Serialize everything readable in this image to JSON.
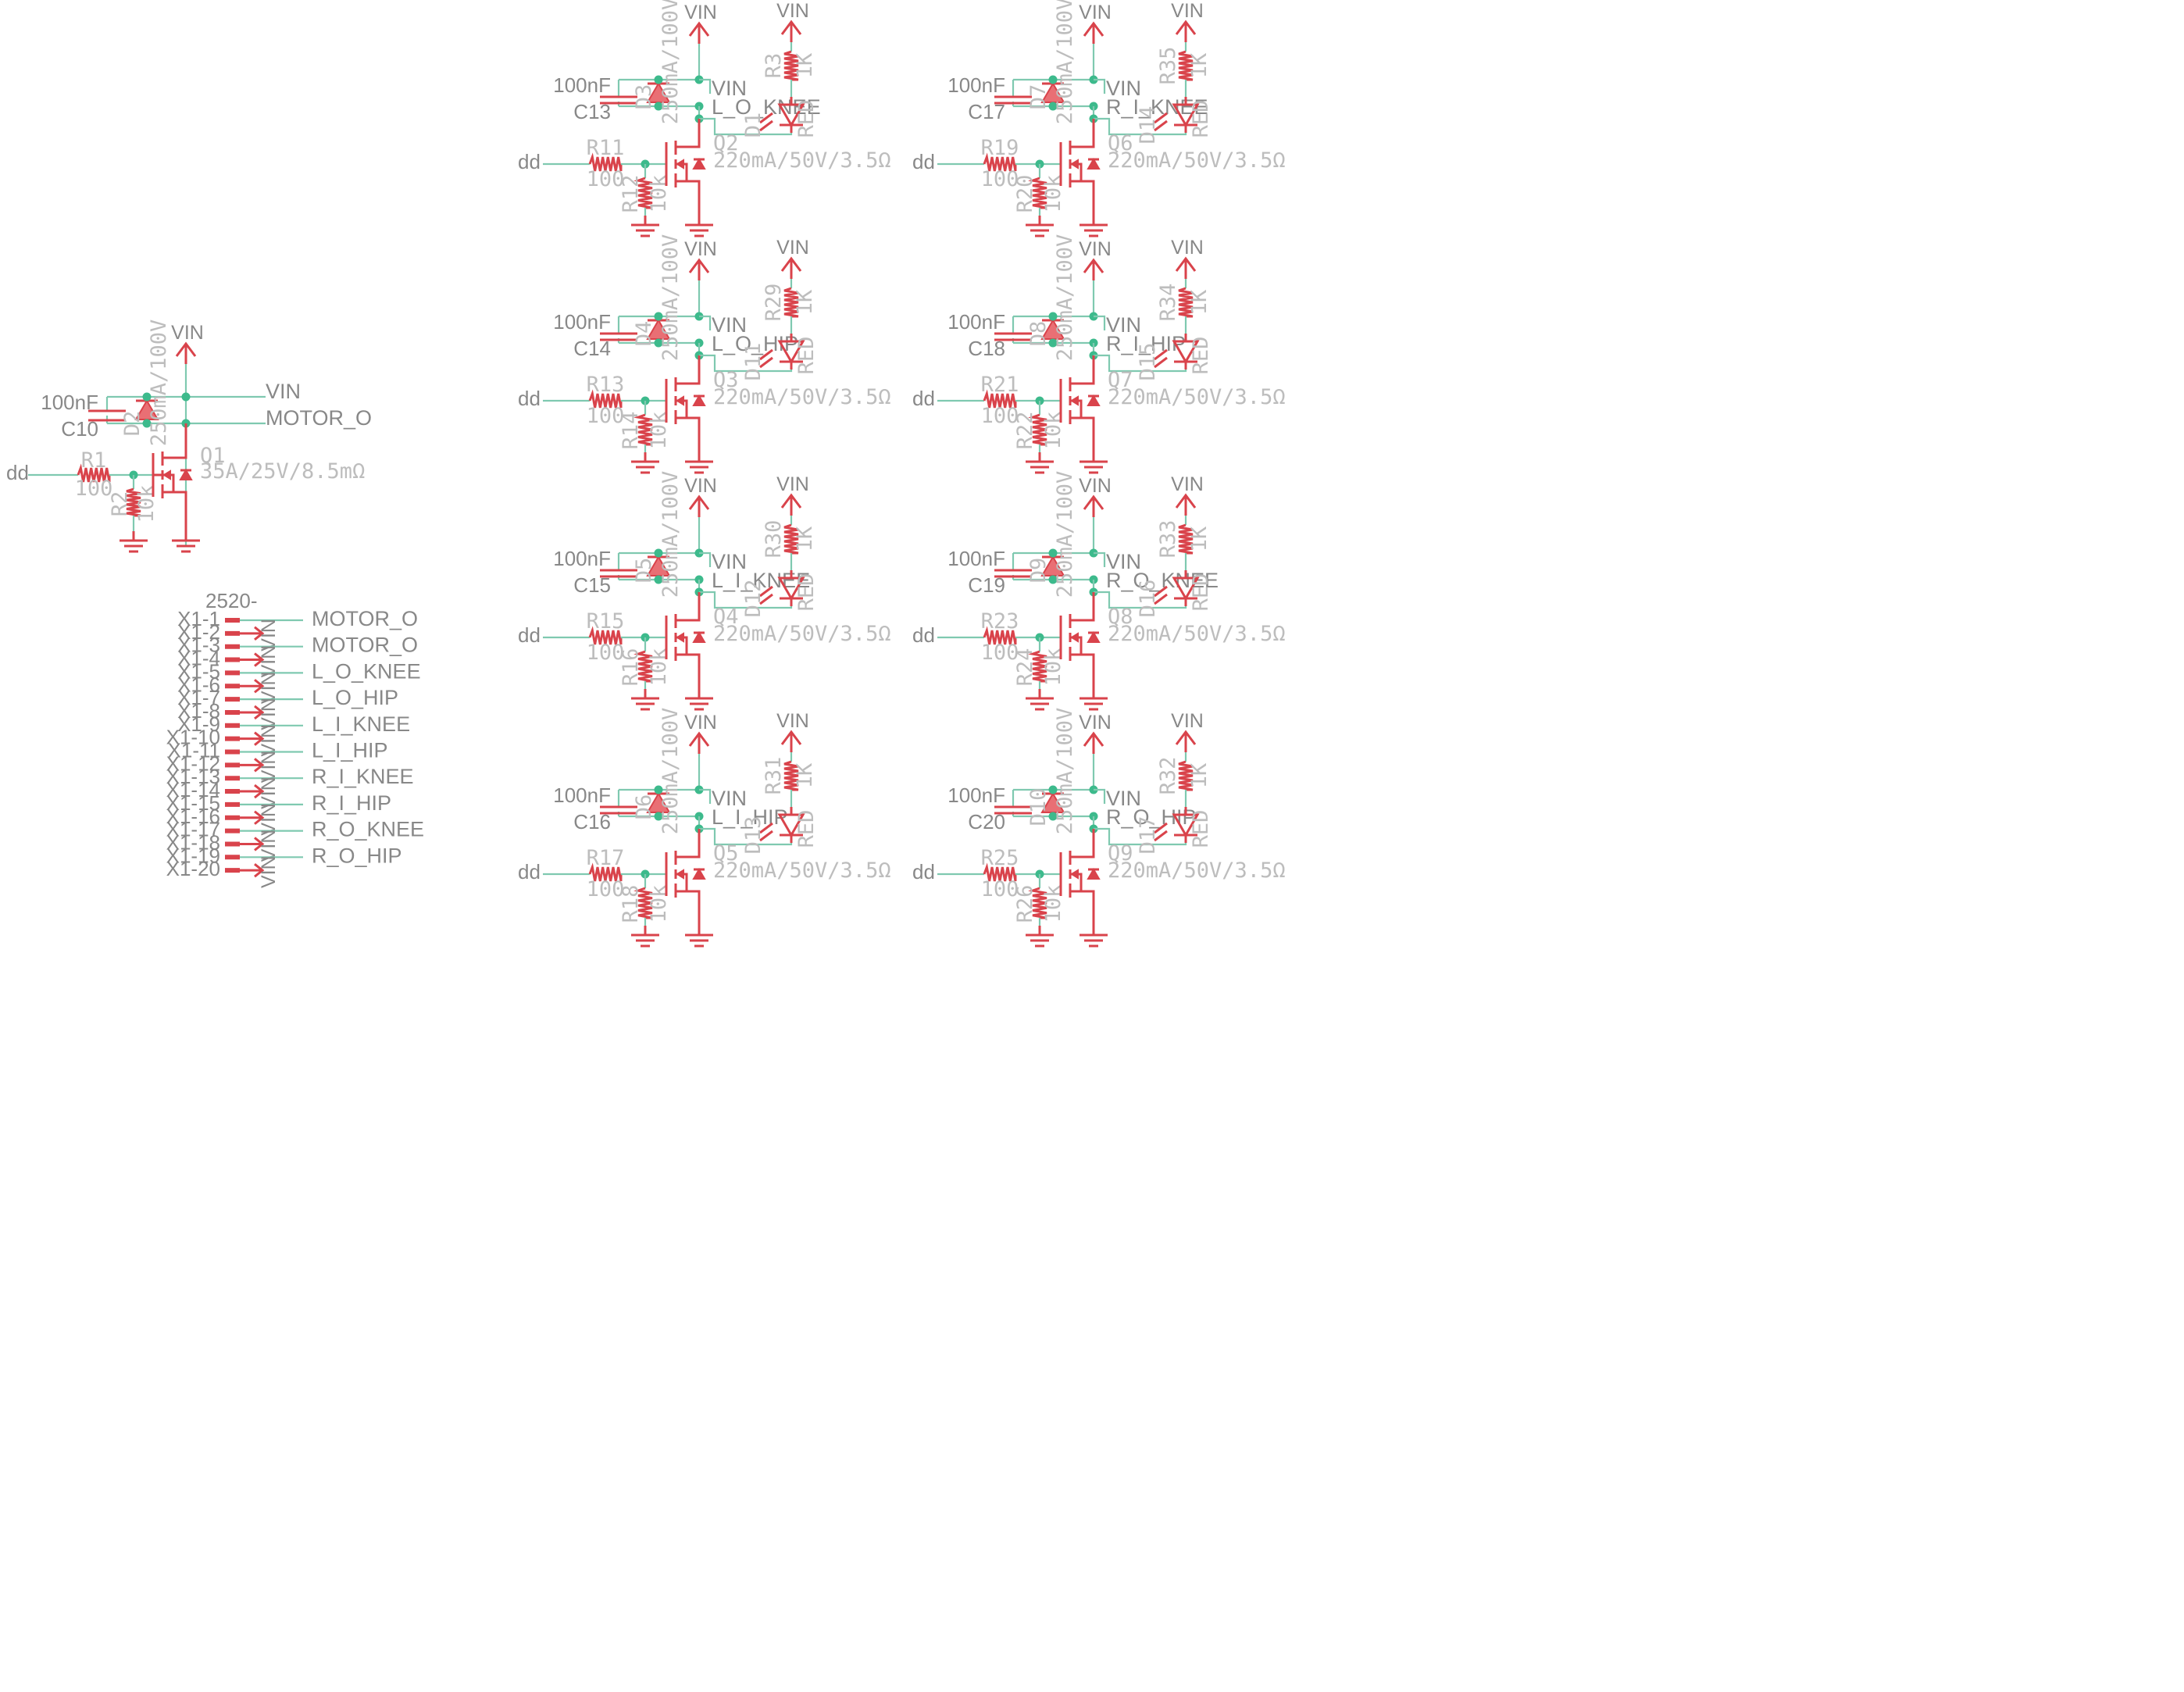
{
  "power": {
    "vin": "VIN"
  },
  "driver": {
    "input": "dd",
    "resistor": {
      "ref": "R1",
      "value": "100"
    },
    "pulldown": {
      "ref": "R2",
      "value": "10k"
    },
    "diode": {
      "ref": "D2",
      "value": "250mA/100V"
    },
    "cap": {
      "ref": "C10",
      "value": "100nF"
    },
    "mosfet": {
      "ref": "Q1",
      "value": "35A/25V/8.5mΩ"
    },
    "net_vin": "VIN",
    "net_out": "MOTOR_O"
  },
  "channels": [
    {
      "cap": "C13",
      "diode": "D3",
      "resistor": "R11",
      "pulldown": "R12",
      "mosfet": "Q2",
      "led_res": "R3",
      "led": "D1",
      "net": "L_O_KNEE"
    },
    {
      "cap": "C17",
      "diode": "D7",
      "resistor": "R19",
      "pulldown": "R20",
      "mosfet": "Q6",
      "led_res": "R35",
      "led": "D14",
      "net": "R_I_KNEE"
    },
    {
      "cap": "C14",
      "diode": "D4",
      "resistor": "R13",
      "pulldown": "R14",
      "mosfet": "Q3",
      "led_res": "R29",
      "led": "D11",
      "net": "L_O_HIP"
    },
    {
      "cap": "C18",
      "diode": "D8",
      "resistor": "R21",
      "pulldown": "R22",
      "mosfet": "Q7",
      "led_res": "R34",
      "led": "D15",
      "net": "R_I_HIP"
    },
    {
      "cap": "C15",
      "diode": "D5",
      "resistor": "R15",
      "pulldown": "R16",
      "mosfet": "Q4",
      "led_res": "R30",
      "led": "D12",
      "net": "L_I_KNEE"
    },
    {
      "cap": "C19",
      "diode": "D9",
      "resistor": "R23",
      "pulldown": "R24",
      "mosfet": "Q8",
      "led_res": "R33",
      "led": "D16",
      "net": "R_O_KNEE"
    },
    {
      "cap": "C16",
      "diode": "D6",
      "resistor": "R17",
      "pulldown": "R18",
      "mosfet": "Q5",
      "led_res": "R31",
      "led": "D13",
      "net": "L_I_HIP"
    },
    {
      "cap": "C20",
      "diode": "D10",
      "resistor": "R25",
      "pulldown": "R26",
      "mosfet": "Q9",
      "led_res": "R32",
      "led": "D17",
      "net": "R_O_HIP"
    }
  ],
  "channel_values": {
    "input": "dd",
    "cap": "100nF",
    "diode": "250mA/100V",
    "resistor": "100",
    "pulldown": "10k",
    "mosfet": "220mA/50V/3.5Ω",
    "led_res": "1K",
    "led": "RED",
    "vin": "VIN"
  },
  "connector": {
    "title": "2520-",
    "pins": [
      {
        "label": "X1-1",
        "net": "MOTOR_O"
      },
      {
        "label": "X1-2",
        "net": "VIN"
      },
      {
        "label": "X1-3",
        "net": "MOTOR_O"
      },
      {
        "label": "X1-4",
        "net": "VIN"
      },
      {
        "label": "X1-5",
        "net": "L_O_KNEE"
      },
      {
        "label": "X1-6",
        "net": "VIN"
      },
      {
        "label": "X1-7",
        "net": "L_O_HIP"
      },
      {
        "label": "X1-8",
        "net": "VIN"
      },
      {
        "label": "X1-9",
        "net": "L_I_KNEE"
      },
      {
        "label": "X1-10",
        "net": "VIN"
      },
      {
        "label": "X1-11",
        "net": "L_I_HIP"
      },
      {
        "label": "X1-12",
        "net": "VIN"
      },
      {
        "label": "X1-13",
        "net": "R_I_KNEE"
      },
      {
        "label": "X1-14",
        "net": "VIN"
      },
      {
        "label": "X1-15",
        "net": "R_I_HIP"
      },
      {
        "label": "X1-16",
        "net": "VIN"
      },
      {
        "label": "X1-17",
        "net": "R_O_KNEE"
      },
      {
        "label": "X1-18",
        "net": "VIN"
      },
      {
        "label": "X1-19",
        "net": "R_O_HIP"
      },
      {
        "label": "X1-20",
        "net": "VIN"
      }
    ]
  }
}
